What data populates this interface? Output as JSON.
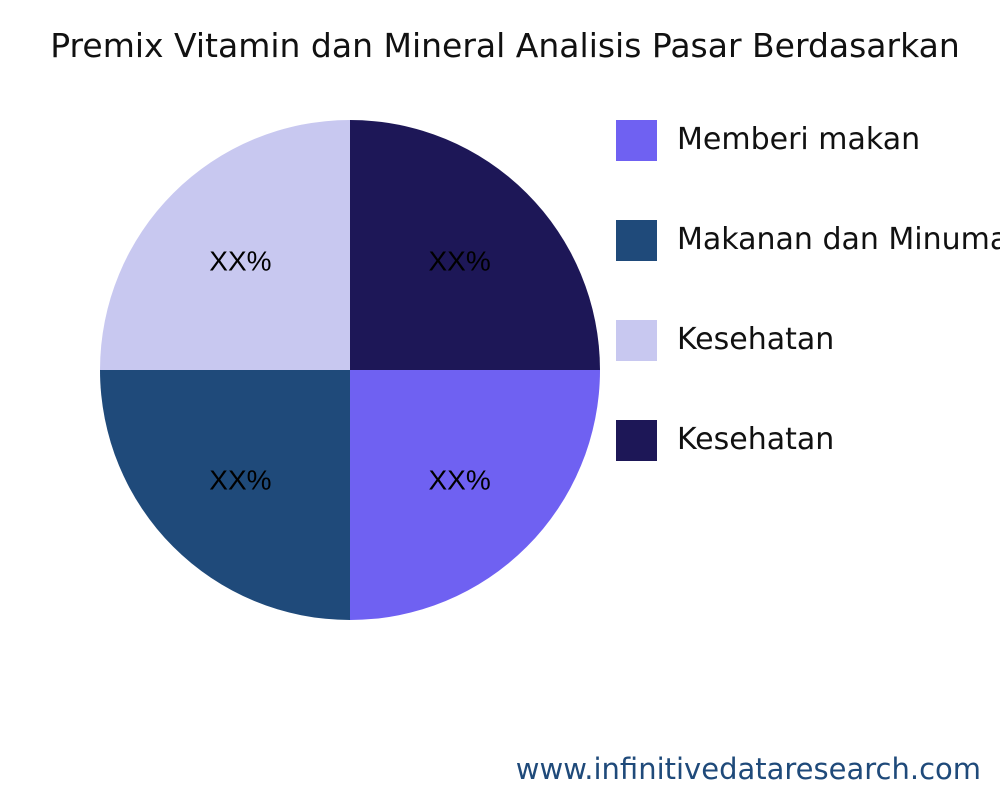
{
  "chart_data": {
    "type": "pie",
    "title": "Premix Vitamin dan Mineral Analisis Pasar Berdasarkan",
    "series": [
      {
        "name": "Memberi makan",
        "value": 25,
        "label": "XX%",
        "color": "#6f61f2"
      },
      {
        "name": "Makanan dan Minuman",
        "value": 25,
        "label": "XX%",
        "color": "#1f4a7a"
      },
      {
        "name": "Kesehatan",
        "value": 25,
        "label": "XX%",
        "color": "#c8c8f0"
      },
      {
        "name": "Kesehatan",
        "value": 25,
        "label": "XX%",
        "color": "#1d1757"
      }
    ],
    "legend": "right"
  },
  "footer": "www.infinitivedataresearch.com"
}
